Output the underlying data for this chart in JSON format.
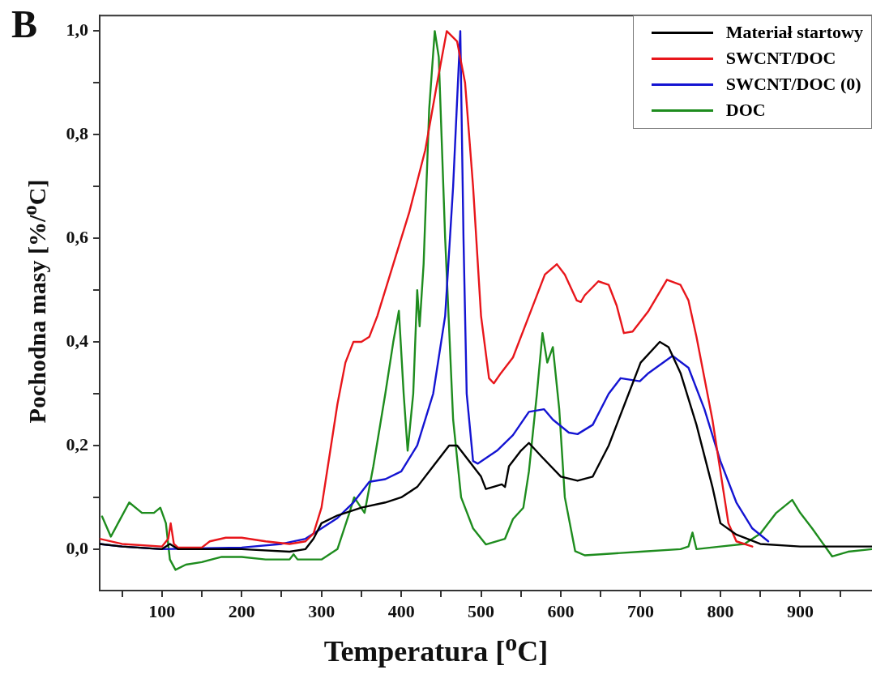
{
  "chart_data": {
    "type": "line",
    "xlabel": "Temperatura [$^{o}$C]",
    "ylabel": "Pochodna masy [%/$^{o}$C]",
    "annotations": [
      "B"
    ],
    "xlim": [
      22,
      990
    ],
    "ylim": [
      -0.08,
      1.03
    ],
    "xticks": [
      {
        "value": 50,
        "label": null
      },
      100,
      {
        "value": 150,
        "label": null
      },
      200,
      {
        "value": 250,
        "label": null
      },
      300,
      {
        "value": 350,
        "label": null
      },
      400,
      {
        "value": 450,
        "label": null
      },
      500,
      {
        "value": 550,
        "label": null
      },
      600,
      {
        "value": 650,
        "label": null
      },
      700,
      {
        "value": 750,
        "label": null
      },
      800,
      {
        "value": 850,
        "label": null
      },
      900,
      {
        "value": 950,
        "label": null
      }
    ],
    "yticks": [
      {
        "value": 0,
        "label": "0,0"
      },
      {
        "value": 0.1,
        "label": null
      },
      {
        "value": 0.2,
        "label": "0,2"
      },
      {
        "value": 0.3,
        "label": null
      },
      {
        "value": 0.4,
        "label": "0,4"
      },
      {
        "value": 0.5,
        "label": null
      },
      {
        "value": 0.6,
        "label": "0,6"
      },
      {
        "value": 0.7,
        "label": null
      },
      {
        "value": 0.8,
        "label": "0,8"
      },
      {
        "value": 0.9,
        "label": null
      },
      {
        "value": 1.0,
        "label": "1,0"
      }
    ],
    "grid": false,
    "legend": "top right",
    "marker": "none",
    "line_style": "solid",
    "series": [
      {
        "name": "Materiał startowy",
        "color": "#000000",
        "x": [
          22,
          50,
          100,
          110,
          120,
          200,
          260,
          280,
          290,
          300,
          320,
          350,
          380,
          400,
          420,
          440,
          460,
          470,
          480,
          500,
          506,
          515,
          526,
          530,
          535,
          550,
          560,
          575,
          600,
          621,
          640,
          660,
          680,
          700,
          724,
          735,
          750,
          770,
          790,
          800,
          820,
          850,
          900,
          990
        ],
        "values": [
          0.01,
          0.005,
          0.0,
          0.01,
          0.0,
          0.0,
          -0.005,
          0.0,
          0.02,
          0.05,
          0.065,
          0.08,
          0.09,
          0.1,
          0.12,
          0.16,
          0.2,
          0.2,
          0.18,
          0.14,
          0.116,
          0.12,
          0.125,
          0.12,
          0.16,
          0.19,
          0.205,
          0.18,
          0.14,
          0.132,
          0.14,
          0.2,
          0.28,
          0.36,
          0.4,
          0.39,
          0.34,
          0.24,
          0.12,
          0.05,
          0.028,
          0.01,
          0.005,
          0.005
        ]
      },
      {
        "name": "SWCNT/DOC",
        "color": "#e8161b",
        "x": [
          22,
          50,
          100,
          108,
          111,
          115,
          120,
          150,
          160,
          180,
          200,
          230,
          260,
          280,
          290,
          300,
          310,
          320,
          330,
          340,
          350,
          360,
          370,
          390,
          410,
          430,
          445,
          457,
          470,
          480,
          490,
          500,
          510,
          516,
          525,
          540,
          560,
          580,
          595,
          605,
          620,
          625,
          630,
          647,
          660,
          670,
          679,
          690,
          710,
          733,
          750,
          760,
          770,
          790,
          800,
          810,
          820,
          840
        ],
        "values": [
          0.02,
          0.01,
          0.005,
          0.02,
          0.05,
          0.01,
          0.003,
          0.003,
          0.015,
          0.022,
          0.022,
          0.015,
          0.01,
          0.015,
          0.03,
          0.08,
          0.18,
          0.28,
          0.36,
          0.4,
          0.4,
          0.41,
          0.45,
          0.55,
          0.65,
          0.77,
          0.9,
          1.0,
          0.98,
          0.9,
          0.7,
          0.45,
          0.33,
          0.32,
          0.34,
          0.37,
          0.45,
          0.53,
          0.55,
          0.53,
          0.48,
          0.477,
          0.49,
          0.517,
          0.51,
          0.47,
          0.417,
          0.42,
          0.46,
          0.52,
          0.51,
          0.48,
          0.41,
          0.25,
          0.15,
          0.05,
          0.015,
          0.005
        ]
      },
      {
        "name": "SWCNT/DOC (0)",
        "color": "#1414d2",
        "x": [
          22,
          50,
          100,
          200,
          250,
          280,
          300,
          320,
          340,
          360,
          380,
          400,
          420,
          440,
          455,
          465,
          474,
          478,
          482,
          490,
          496,
          520,
          540,
          560,
          579,
          590,
          610,
          621,
          640,
          660,
          675,
          699,
          710,
          740,
          760,
          780,
          800,
          820,
          840,
          860
        ],
        "values": [
          0.01,
          0.005,
          0.0,
          0.003,
          0.01,
          0.02,
          0.04,
          0.06,
          0.09,
          0.13,
          0.135,
          0.15,
          0.2,
          0.3,
          0.45,
          0.7,
          1.0,
          0.6,
          0.3,
          0.17,
          0.165,
          0.19,
          0.22,
          0.265,
          0.27,
          0.25,
          0.225,
          0.222,
          0.24,
          0.3,
          0.33,
          0.324,
          0.34,
          0.373,
          0.35,
          0.27,
          0.17,
          0.09,
          0.04,
          0.015
        ]
      },
      {
        "name": "DOC",
        "color": "#1e8c1e",
        "x": [
          25,
          36,
          45,
          59,
          75,
          90,
          98,
          105,
          110,
          117,
          130,
          150,
          175,
          200,
          230,
          260,
          265,
          270,
          300,
          320,
          335,
          341,
          354,
          365,
          380,
          390,
          397,
          403,
          408,
          415,
          420,
          423,
          428,
          435,
          442,
          447,
          455,
          465,
          475,
          490,
          506,
          530,
          540,
          553,
          560,
          570,
          577,
          583,
          590,
          598,
          605,
          618,
          630,
          650,
          700,
          750,
          760,
          765,
          770,
          800,
          830,
          850,
          870,
          890,
          900,
          915,
          940,
          960,
          990
        ],
        "values": [
          0.063,
          0.024,
          0.05,
          0.09,
          0.07,
          0.07,
          0.08,
          0.05,
          -0.02,
          -0.04,
          -0.03,
          -0.025,
          -0.015,
          -0.015,
          -0.02,
          -0.02,
          -0.01,
          -0.02,
          -0.02,
          0.0,
          0.07,
          0.1,
          0.07,
          0.16,
          0.3,
          0.4,
          0.46,
          0.3,
          0.19,
          0.3,
          0.5,
          0.43,
          0.55,
          0.85,
          1.0,
          0.95,
          0.6,
          0.25,
          0.1,
          0.04,
          0.009,
          0.02,
          0.058,
          0.08,
          0.15,
          0.3,
          0.417,
          0.36,
          0.39,
          0.27,
          0.1,
          -0.004,
          -0.012,
          -0.01,
          -0.005,
          0.0,
          0.005,
          0.032,
          0.0,
          0.005,
          0.01,
          0.03,
          0.07,
          0.095,
          0.07,
          0.04,
          -0.014,
          -0.005,
          0.0
        ]
      }
    ]
  }
}
